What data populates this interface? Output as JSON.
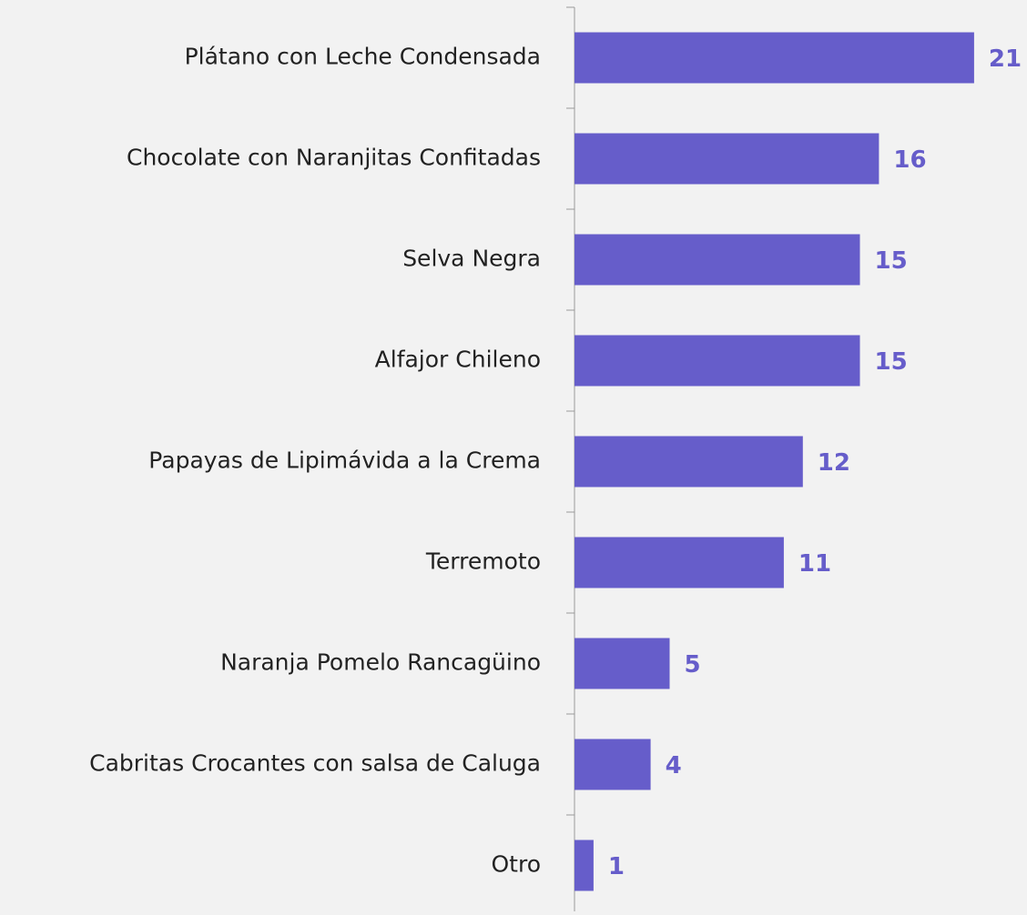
{
  "chart_data": {
    "type": "bar",
    "orientation": "horizontal",
    "categories": [
      "Plátano con Leche Condensada",
      "Chocolate con Naranjitas Confitadas",
      "Selva Negra",
      "Alfajor Chileno",
      "Papayas de Lipimávida a la Crema",
      "Terremoto",
      "Naranja Pomelo Rancagüino",
      "Cabritas Crocantes con salsa de Caluga",
      "Otro"
    ],
    "values": [
      21,
      16,
      15,
      15,
      12,
      11,
      5,
      4,
      1
    ],
    "color": "#665dca"
  }
}
